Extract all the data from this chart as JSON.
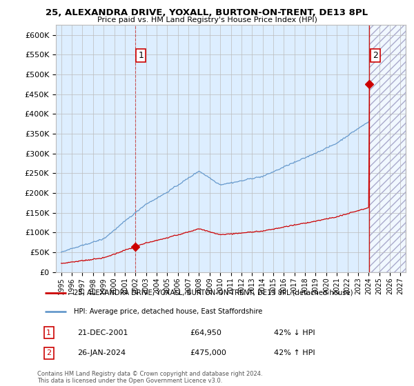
{
  "title_line1": "25, ALEXANDRA DRIVE, YOXALL, BURTON-ON-TRENT, DE13 8PL",
  "title_line2": "Price paid vs. HM Land Registry's House Price Index (HPI)",
  "ytick_values": [
    0,
    50000,
    100000,
    150000,
    200000,
    250000,
    300000,
    350000,
    400000,
    450000,
    500000,
    550000,
    600000
  ],
  "ylim": [
    0,
    625000
  ],
  "xlim_start": 1994.5,
  "xlim_end": 2027.5,
  "hpi_color": "#6699cc",
  "price_color": "#cc0000",
  "point1_x": 2001.97,
  "point1_y": 64950,
  "point2_x": 2024.07,
  "point2_y": 475000,
  "bg_fill_color": "#ddeeff",
  "legend_label1": "25, ALEXANDRA DRIVE, YOXALL, BURTON-ON-TRENT, DE13 8PL (detached house)",
  "legend_label2": "HPI: Average price, detached house, East Staffordshire",
  "note1_date": "21-DEC-2001",
  "note1_price": "£64,950",
  "note1_hpi": "42% ↓ HPI",
  "note2_date": "26-JAN-2024",
  "note2_price": "£475,000",
  "note2_hpi": "42% ↑ HPI",
  "footer": "Contains HM Land Registry data © Crown copyright and database right 2024.\nThis data is licensed under the Open Government Licence v3.0.",
  "background_color": "#ffffff",
  "grid_color": "#bbbbbb"
}
